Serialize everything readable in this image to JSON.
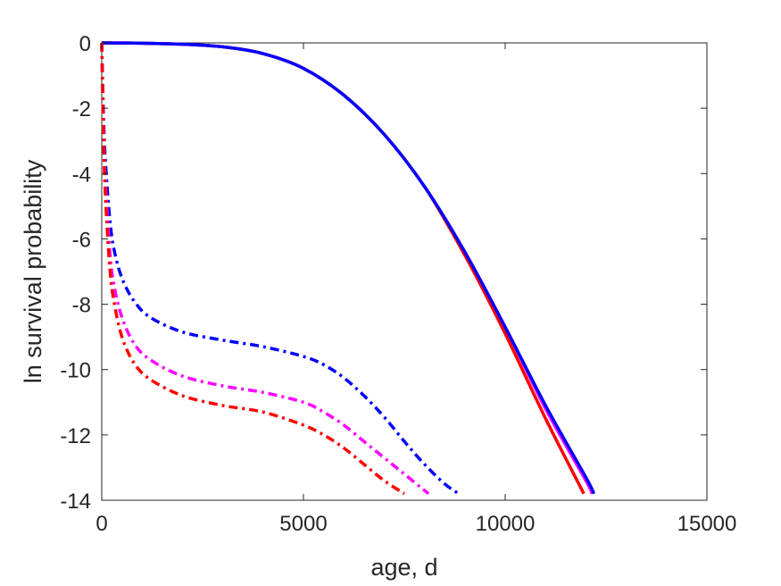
{
  "chart_data": {
    "type": "line",
    "title": "",
    "xlabel": "age, d",
    "ylabel": "ln survival probability",
    "xlim": [
      0,
      15000
    ],
    "ylim": [
      -14,
      0
    ],
    "xticks": [
      0,
      5000,
      10000,
      15000
    ],
    "xtick_labels": [
      "0",
      "5000",
      "10000",
      "15000"
    ],
    "yticks": [
      0,
      -2,
      -4,
      -6,
      -8,
      -10,
      -12,
      -14
    ],
    "ytick_labels": [
      "0",
      "-2",
      "-4",
      "-6",
      "-8",
      "-10",
      "-12",
      "-14"
    ],
    "grid": false,
    "legend": "none",
    "series": [
      {
        "color": "#ff00ff",
        "style": "solid",
        "x": [
          0,
          1000,
          2000,
          3000,
          4000,
          5000,
          6000,
          7000,
          8000,
          9000,
          10000,
          11000,
          12000,
          12150
        ],
        "y": [
          0,
          -0.01,
          -0.04,
          -0.12,
          -0.33,
          -0.78,
          -1.6,
          -2.8,
          -4.4,
          -6.4,
          -8.7,
          -11.2,
          -13.4,
          -13.8
        ]
      },
      {
        "color": "#ff0000",
        "style": "solid",
        "x": [
          0,
          1000,
          2000,
          3000,
          4000,
          5000,
          6000,
          7000,
          8000,
          9000,
          10000,
          11000,
          11950
        ],
        "y": [
          0,
          -0.01,
          -0.04,
          -0.12,
          -0.33,
          -0.78,
          -1.6,
          -2.8,
          -4.4,
          -6.5,
          -8.9,
          -11.5,
          -13.8
        ]
      },
      {
        "color": "#0000ff",
        "style": "solid",
        "x": [
          0,
          1000,
          2000,
          3000,
          4000,
          5000,
          6000,
          7000,
          8000,
          9000,
          10000,
          11000,
          12000,
          12200
        ],
        "y": [
          0,
          -0.01,
          -0.04,
          -0.12,
          -0.33,
          -0.78,
          -1.6,
          -2.8,
          -4.4,
          -6.4,
          -8.7,
          -11.1,
          -13.3,
          -13.8
        ]
      },
      {
        "color": "#0000ff",
        "style": "dashdot",
        "x": [
          0,
          50,
          100,
          200,
          300,
          500,
          800,
          1200,
          2000,
          3000,
          4000,
          5000,
          5500,
          6000,
          6500,
          7000,
          7500,
          8000,
          8500,
          8850
        ],
        "y": [
          0,
          -2.5,
          -3.8,
          -5.4,
          -6.3,
          -7.2,
          -7.9,
          -8.4,
          -8.85,
          -9.1,
          -9.3,
          -9.6,
          -9.85,
          -10.25,
          -10.8,
          -11.45,
          -12.2,
          -12.9,
          -13.5,
          -13.8
        ]
      },
      {
        "color": "#ff00ff",
        "style": "dashdot",
        "x": [
          0,
          50,
          100,
          200,
          300,
          500,
          800,
          1200,
          2000,
          3000,
          4000,
          5000,
          5500,
          6000,
          6500,
          7000,
          7500,
          8000,
          8100
        ],
        "y": [
          0,
          -3.0,
          -4.5,
          -6.4,
          -7.4,
          -8.4,
          -9.2,
          -9.7,
          -10.2,
          -10.5,
          -10.7,
          -11.0,
          -11.3,
          -11.7,
          -12.2,
          -12.7,
          -13.2,
          -13.7,
          -13.8
        ]
      },
      {
        "color": "#ff0000",
        "style": "dashdot",
        "x": [
          0,
          50,
          100,
          200,
          300,
          500,
          800,
          1200,
          2000,
          3000,
          4000,
          5000,
          5500,
          6000,
          6500,
          7000,
          7500
        ],
        "y": [
          0,
          -3.2,
          -4.9,
          -6.9,
          -7.9,
          -9.0,
          -9.8,
          -10.3,
          -10.8,
          -11.1,
          -11.3,
          -11.7,
          -12.0,
          -12.4,
          -12.9,
          -13.4,
          -13.8
        ]
      }
    ]
  }
}
